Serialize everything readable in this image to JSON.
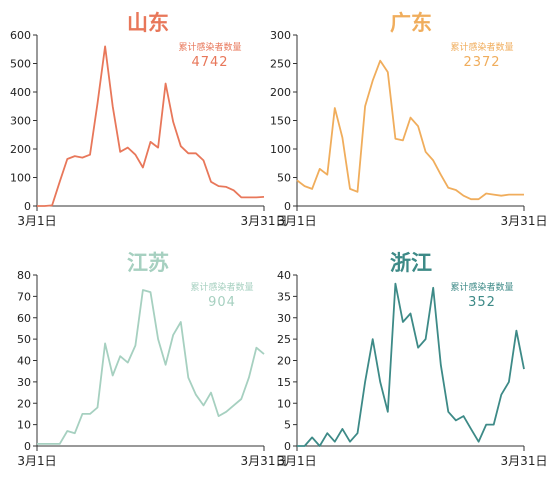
{
  "chart_data": [
    {
      "type": "line",
      "title": "山东",
      "color": "#e8775a",
      "annotation_label": "累计感染者数量",
      "annotation_value": "4742",
      "ylim": [
        0,
        600
      ],
      "yticks": [
        "0",
        "100",
        "200",
        "300",
        "400",
        "500",
        "600"
      ],
      "x_start_label": "3月1日",
      "x_end_label": "3月31日",
      "xlim": [
        1,
        31
      ],
      "series": [
        {
          "x": [
            1,
            2,
            3,
            4,
            5,
            6,
            7,
            8,
            9,
            10,
            11,
            12,
            13,
            14,
            15,
            16,
            17,
            18,
            19,
            20,
            21,
            22,
            23,
            24,
            25,
            26,
            27,
            28,
            29,
            30,
            31
          ],
          "values": [
            0,
            0,
            2,
            85,
            165,
            175,
            170,
            180,
            360,
            560,
            350,
            190,
            205,
            180,
            135,
            225,
            205,
            430,
            295,
            210,
            185,
            185,
            160,
            85,
            70,
            67,
            55,
            30,
            30,
            30,
            32
          ]
        }
      ]
    },
    {
      "type": "line",
      "title": "广东",
      "color": "#f0ad5c",
      "annotation_label": "累计感染者数量",
      "annotation_value": "2372",
      "ylim": [
        0,
        300
      ],
      "yticks": [
        "0",
        "50",
        "100",
        "150",
        "200",
        "250",
        "300"
      ],
      "x_start_label": "3月1日",
      "x_end_label": "3月31日",
      "xlim": [
        1,
        31
      ],
      "series": [
        {
          "x": [
            1,
            2,
            3,
            4,
            5,
            6,
            7,
            8,
            9,
            10,
            11,
            12,
            13,
            14,
            15,
            16,
            17,
            18,
            19,
            20,
            21,
            22,
            23,
            24,
            25,
            26,
            27,
            28,
            29,
            30,
            31
          ],
          "values": [
            45,
            35,
            30,
            65,
            55,
            172,
            120,
            30,
            25,
            175,
            220,
            255,
            235,
            118,
            115,
            155,
            140,
            95,
            80,
            55,
            32,
            28,
            18,
            12,
            12,
            22,
            20,
            18,
            20,
            20,
            20
          ]
        }
      ]
    },
    {
      "type": "line",
      "title": "江苏",
      "color": "#a6d0c0",
      "annotation_label": "累计感染者数量",
      "annotation_value": "904",
      "ylim": [
        0,
        80
      ],
      "yticks": [
        "0",
        "10",
        "20",
        "30",
        "40",
        "50",
        "60",
        "70",
        "80"
      ],
      "x_start_label": "3月1日",
      "x_end_label": "3月31日",
      "xlim": [
        1,
        31
      ],
      "series": [
        {
          "x": [
            1,
            2,
            3,
            4,
            5,
            6,
            7,
            8,
            9,
            10,
            11,
            12,
            13,
            14,
            15,
            16,
            17,
            18,
            19,
            20,
            21,
            22,
            23,
            24,
            25,
            26,
            27,
            28,
            29,
            30,
            31
          ],
          "values": [
            1,
            1,
            1,
            1,
            7,
            6,
            15,
            15,
            18,
            48,
            33,
            42,
            39,
            47,
            73,
            72,
            50,
            38,
            52,
            58,
            32,
            24,
            19,
            25,
            14,
            16,
            19,
            22,
            32,
            46,
            43
          ]
        }
      ]
    },
    {
      "type": "line",
      "title": "浙江",
      "color": "#3d8a87",
      "annotation_label": "累计感染者数量",
      "annotation_value": "352",
      "ylim": [
        0,
        40
      ],
      "yticks": [
        "0",
        "5",
        "10",
        "15",
        "20",
        "25",
        "30",
        "35",
        "40"
      ],
      "x_start_label": "3月1日",
      "x_end_label": "3月31日",
      "xlim": [
        1,
        31
      ],
      "series": [
        {
          "x": [
            1,
            2,
            3,
            4,
            5,
            6,
            7,
            8,
            9,
            10,
            11,
            12,
            13,
            14,
            15,
            16,
            17,
            18,
            19,
            20,
            21,
            22,
            23,
            24,
            25,
            26,
            27,
            28,
            29,
            30,
            31
          ],
          "values": [
            0,
            0,
            2,
            0,
            3,
            1,
            4,
            1,
            3,
            15,
            25,
            15,
            8,
            38,
            29,
            31,
            23,
            25,
            37,
            19,
            8,
            6,
            7,
            4,
            1,
            5,
            5,
            12,
            15,
            27,
            18
          ]
        }
      ]
    }
  ]
}
